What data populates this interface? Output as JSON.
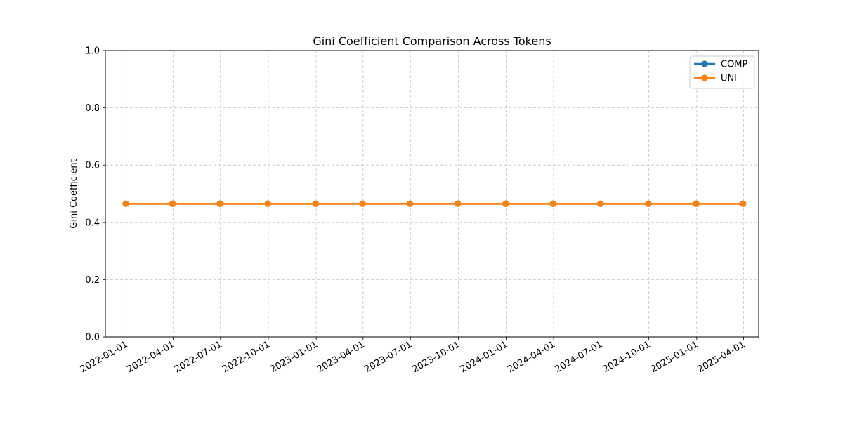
{
  "chart_data": {
    "type": "line",
    "title": "Gini Coefficient Comparison Across Tokens",
    "xlabel": "",
    "ylabel": "Gini Coefficient",
    "x_ticks": [
      "2022-01-01",
      "2022-04-01",
      "2022-07-01",
      "2022-10-01",
      "2023-01-01",
      "2023-04-01",
      "2023-07-01",
      "2023-10-01",
      "2024-01-01",
      "2024-04-01",
      "2024-07-01",
      "2024-10-01",
      "2025-01-01",
      "2025-04-01"
    ],
    "y_ticks": [
      "0.0",
      "0.2",
      "0.4",
      "0.6",
      "0.8",
      "1.0"
    ],
    "ylim": [
      0,
      1
    ],
    "xlim": [
      "2021-11-22",
      "2025-04-30"
    ],
    "grid": true,
    "legend_position": "top-right",
    "x": [
      "2021-12-31",
      "2022-03-31",
      "2022-06-30",
      "2022-09-30",
      "2022-12-31",
      "2023-03-31",
      "2023-06-30",
      "2023-09-30",
      "2023-12-31",
      "2024-03-31",
      "2024-06-30",
      "2024-09-30",
      "2024-12-31",
      "2025-03-31"
    ],
    "series": [
      {
        "name": "COMP",
        "color": "#1f77b4",
        "values": [
          0.465,
          0.465,
          0.465,
          0.465,
          0.465,
          0.465,
          0.465,
          0.465,
          0.465,
          0.465,
          0.465,
          0.465,
          0.465,
          0.465
        ]
      },
      {
        "name": "UNI",
        "color": "#ff7f0e",
        "values": [
          0.465,
          0.465,
          0.465,
          0.465,
          0.465,
          0.465,
          0.465,
          0.465,
          0.465,
          0.465,
          0.465,
          0.465,
          0.465,
          0.465
        ]
      }
    ]
  }
}
